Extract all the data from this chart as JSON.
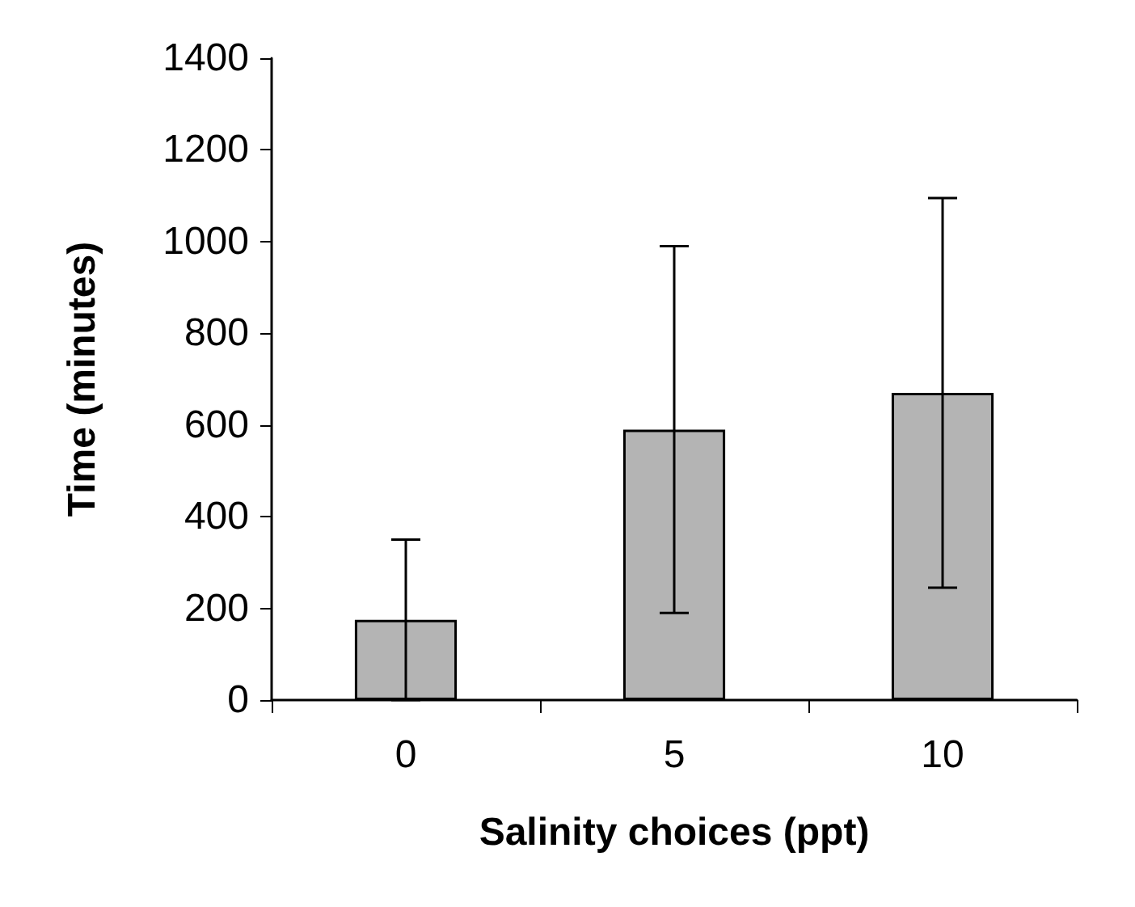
{
  "chart_data": {
    "type": "bar",
    "xlabel": "Salinity choices (ppt)",
    "ylabel": "Time (minutes)",
    "categories": [
      "0",
      "5",
      "10"
    ],
    "values": [
      175,
      590,
      670
    ],
    "errors": [
      [
        0,
        350
      ],
      [
        190,
        990
      ],
      [
        245,
        1095
      ]
    ],
    "color": "#b4b4b4",
    "ylim": [
      0,
      1400
    ],
    "yticks": [
      0,
      200,
      400,
      600,
      800,
      1000,
      1200,
      1400
    ],
    "grid": false
  }
}
